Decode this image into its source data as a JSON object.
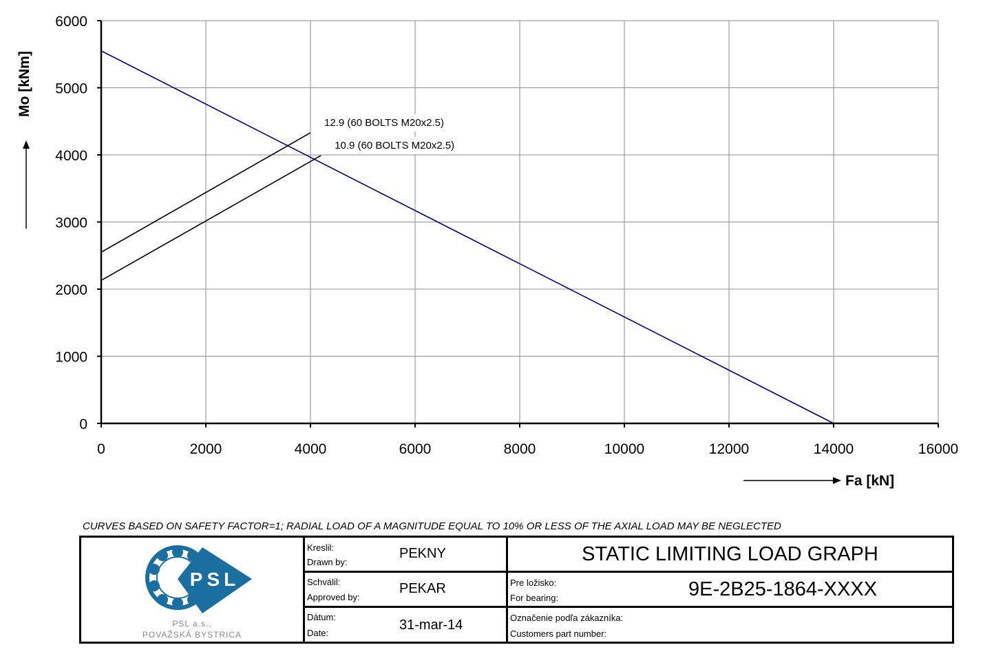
{
  "chart_data": {
    "type": "line",
    "xlabel": "Fa [kN]",
    "ylabel": "Mo [kNm]",
    "xlim": [
      0,
      16000
    ],
    "ylim": [
      0,
      6000
    ],
    "x_ticks": [
      0,
      2000,
      4000,
      6000,
      8000,
      10000,
      12000,
      14000,
      16000
    ],
    "y_ticks": [
      0,
      1000,
      2000,
      3000,
      4000,
      5000,
      6000
    ],
    "grid": true,
    "series": [
      {
        "name": "",
        "color": "#000080",
        "x": [
          0,
          14000
        ],
        "y": [
          5550,
          0
        ]
      },
      {
        "name": "12.9 (60 BOLTS M20x2.5)",
        "color": "#000000",
        "x": [
          0,
          4000
        ],
        "y": [
          2550,
          4330
        ]
      },
      {
        "name": "10.9 (60 BOLTS M20x2.5)",
        "color": "#000000",
        "x": [
          0,
          4200
        ],
        "y": [
          2130,
          3990
        ]
      }
    ]
  },
  "note": "CURVES BASED ON SAFETY FACTOR=1; RADIAL LOAD OF A MAGNITUDE EQUAL TO 10% OR LESS OF THE AXIAL LOAD MAY BE NEGLECTED",
  "title_block": {
    "logo_text": "PSL",
    "company_line1": "PSL a.s.,",
    "company_line2": "POVAŽSKÁ BYSTRICA",
    "drawn_label_sk": "Kreslil:",
    "drawn_label_en": "Drawn by:",
    "drawn_value": "PEKNY",
    "approved_label_sk": "Schválil:",
    "approved_label_en": "Approved by:",
    "approved_value": "PEKAR",
    "date_label_sk": "Dátum:",
    "date_label_en": "Date:",
    "date_value": "31-mar-14",
    "title": "STATIC LIMITING LOAD GRAPH",
    "bearing_label_sk": "Pre ložisko:",
    "bearing_label_en": "For bearing:",
    "bearing_value": "9E-2B25-1864-XXXX",
    "customer_label_sk": "Označenie podľa zákazníka:",
    "customer_label_en": "Customers part number:",
    "logo_colors": {
      "primary": "#1a6fa0"
    }
  }
}
